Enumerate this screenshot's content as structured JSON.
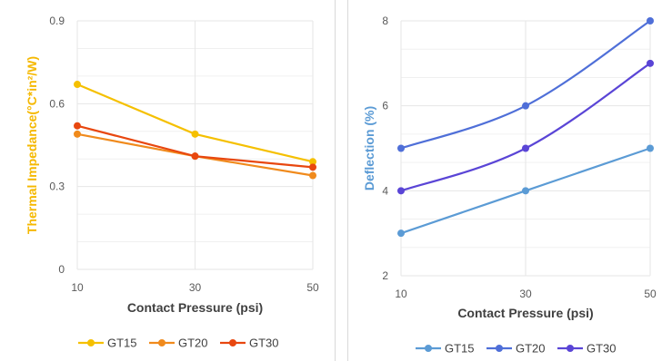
{
  "chart_data": [
    {
      "type": "line",
      "xlabel": "Contact Pressure (psi)",
      "ylabel": "Thermal Impedance(°C*in²/W)",
      "ylabel_color": "#f5b800",
      "x": [
        10,
        30,
        50
      ],
      "xticks": [
        "10",
        "30",
        "50"
      ],
      "ylim": [
        0,
        0.9
      ],
      "yticks": [
        0,
        0.3,
        0.6,
        0.9
      ],
      "ytick_labels": [
        "0",
        "0.3",
        "0.6",
        "0.9"
      ],
      "grid": true,
      "legend": "bottom",
      "series": [
        {
          "name": "GT15",
          "color": "#f5c000",
          "values": [
            0.67,
            0.49,
            0.39
          ]
        },
        {
          "name": "GT20",
          "color": "#f08a1c",
          "values": [
            0.49,
            0.41,
            0.34
          ]
        },
        {
          "name": "GT30",
          "color": "#e8470f",
          "values": [
            0.52,
            0.41,
            0.37
          ]
        }
      ]
    },
    {
      "type": "line",
      "xlabel": "Contact Pressure (psi)",
      "ylabel": "Deflection (%)",
      "ylabel_color": "#5b9bd5",
      "x": [
        10,
        30,
        50
      ],
      "xticks": [
        "10",
        "30",
        "50"
      ],
      "ylim": [
        2,
        8
      ],
      "yticks": [
        2,
        4,
        6,
        8
      ],
      "ytick_labels": [
        "2",
        "4",
        "6",
        "8"
      ],
      "grid": true,
      "legend": "bottom",
      "series": [
        {
          "name": "GT15",
          "color": "#5b9bd5",
          "values": [
            3,
            4,
            5
          ]
        },
        {
          "name": "GT20",
          "color": "#4f6fd8",
          "values": [
            5,
            6,
            8
          ]
        },
        {
          "name": "GT30",
          "color": "#5a45d6",
          "values": [
            4,
            5,
            7
          ]
        }
      ]
    }
  ]
}
